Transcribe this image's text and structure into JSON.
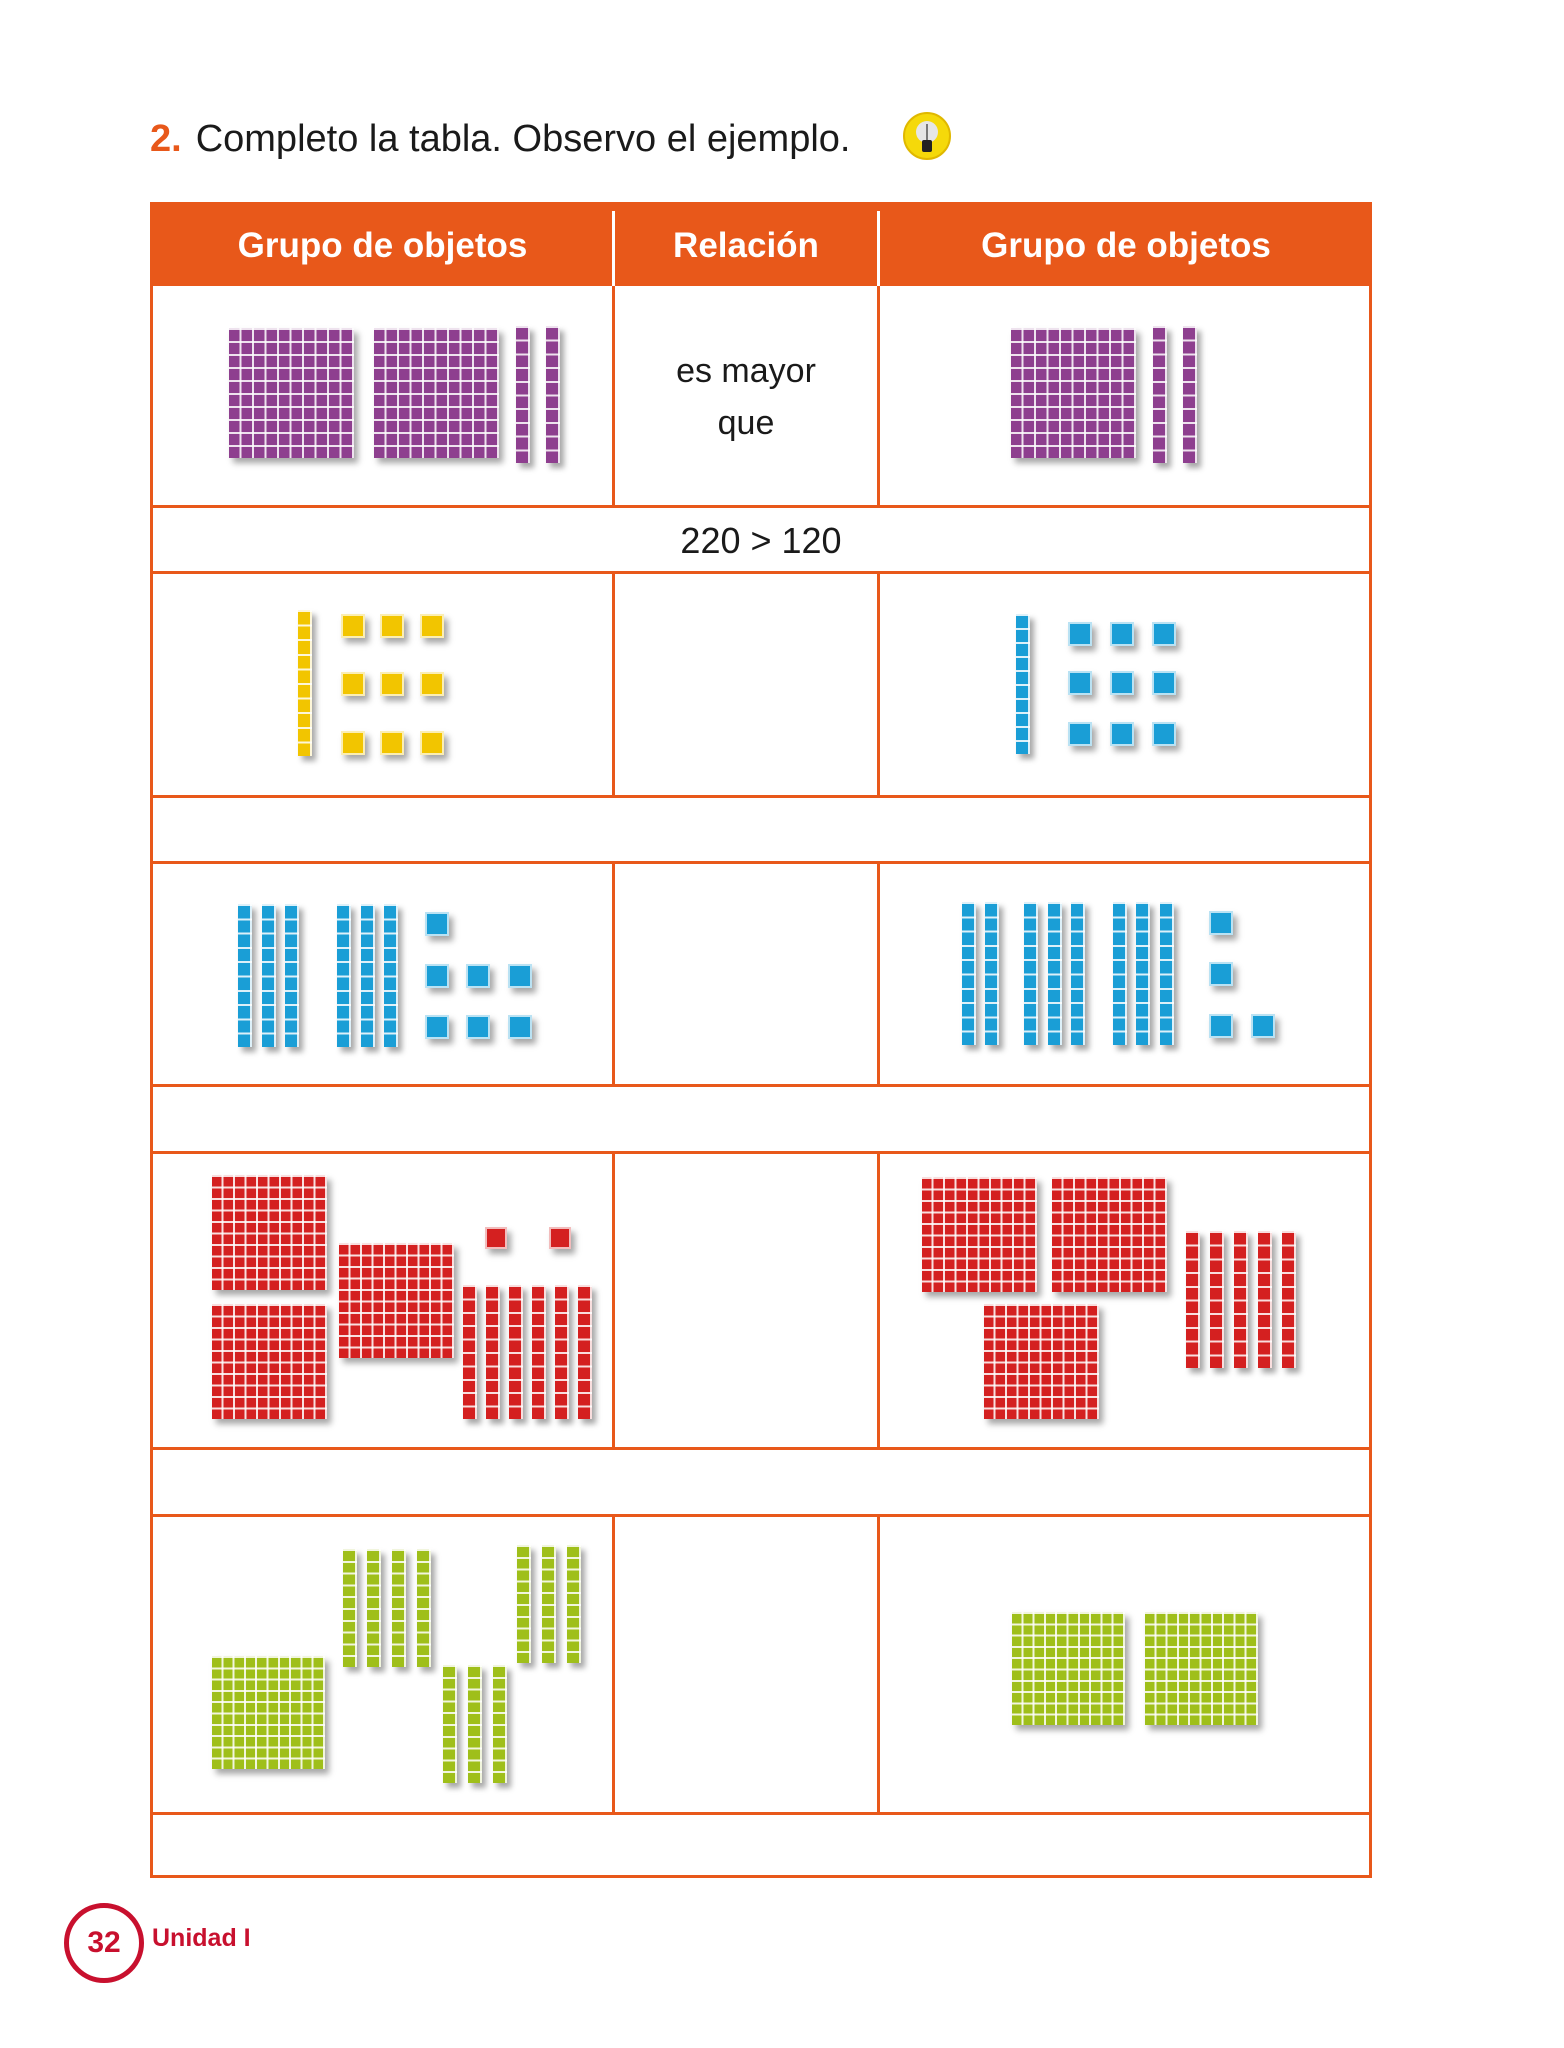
{
  "instruction": {
    "number": "2.",
    "text": "Completo la tabla. Observo el ejemplo.",
    "icon": "lightbulb-icon"
  },
  "colors": {
    "accent": "#e8581a",
    "footer": "#c8102e"
  },
  "table": {
    "headers": [
      "Grupo de objetos",
      "Relación",
      "Grupo de objetos"
    ],
    "rows": [
      {
        "left": {
          "color": "#8e3f8f",
          "hundreds": 2,
          "tens": 2,
          "ones": 0
        },
        "relation_lines": [
          "es mayor",
          "que"
        ],
        "right": {
          "color": "#8e3f8f",
          "hundreds": 1,
          "tens": 2,
          "ones": 0
        },
        "expression": "220 > 120"
      },
      {
        "left": {
          "color": "#f2c500",
          "hundreds": 0,
          "tens": 1,
          "ones": 9
        },
        "relation_lines": [],
        "right": {
          "color": "#1a9ed6",
          "hundreds": 0,
          "tens": 1,
          "ones": 9
        },
        "expression": ""
      },
      {
        "left": {
          "color": "#1a9ed6",
          "hundreds": 0,
          "tens": 6,
          "ones": 7
        },
        "relation_lines": [],
        "right": {
          "color": "#1a9ed6",
          "hundreds": 0,
          "tens": 8,
          "ones": 4
        },
        "expression": ""
      },
      {
        "left": {
          "color": "#d42020",
          "hundreds": 3,
          "tens": 6,
          "ones": 2
        },
        "relation_lines": [],
        "right": {
          "color": "#d42020",
          "hundreds": 3,
          "tens": 5,
          "ones": 0
        },
        "expression": ""
      },
      {
        "left": {
          "color": "#9fbf1a",
          "hundreds": 1,
          "tens": 10,
          "ones": 0
        },
        "relation_lines": [],
        "right": {
          "color": "#9fbf1a",
          "hundreds": 2,
          "tens": 0,
          "ones": 0
        },
        "expression": ""
      }
    ]
  },
  "footer": {
    "page_number": "32",
    "unit": "Unidad I"
  }
}
